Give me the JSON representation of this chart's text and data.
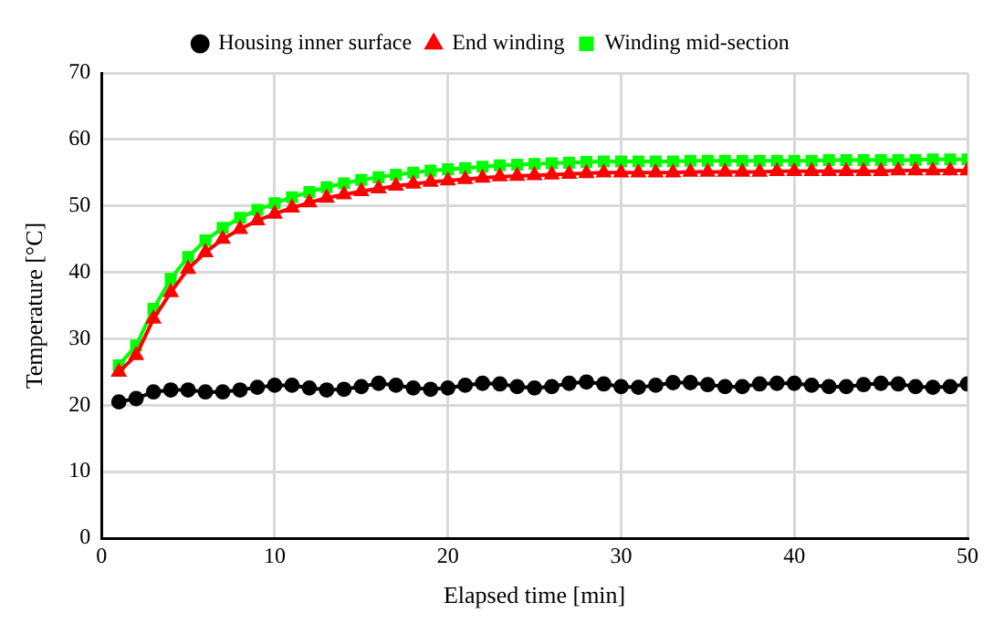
{
  "chart_data": {
    "type": "line",
    "xlabel": "Elapsed time [min]",
    "ylabel": "Temperature [°C]",
    "x": [
      1,
      2,
      3,
      4,
      5,
      6,
      7,
      8,
      9,
      10,
      11,
      12,
      13,
      14,
      15,
      16,
      17,
      18,
      19,
      20,
      21,
      22,
      23,
      24,
      25,
      26,
      27,
      28,
      29,
      30,
      31,
      32,
      33,
      34,
      35,
      36,
      37,
      38,
      39,
      40,
      41,
      42,
      43,
      44,
      45,
      46,
      47,
      48,
      49,
      50
    ],
    "series": [
      {
        "name": "Housing inner surface",
        "color": "#000000",
        "marker": "circle",
        "values": [
          20.5,
          21,
          22,
          22.3,
          22.3,
          22,
          22,
          22.3,
          22.7,
          23,
          23,
          22.6,
          22.3,
          22.4,
          22.8,
          23.3,
          23,
          22.6,
          22.4,
          22.6,
          23,
          23.3,
          23.2,
          22.8,
          22.6,
          22.8,
          23.3,
          23.5,
          23.2,
          22.8,
          22.7,
          23,
          23.4,
          23.4,
          23.1,
          22.8,
          22.8,
          23.2,
          23.3,
          23.3,
          23,
          22.8,
          22.8,
          23.1,
          23.3,
          23.2,
          22.8,
          22.7,
          22.8,
          23.2
        ]
      },
      {
        "name": "End winding",
        "color": "#ff0000",
        "marker": "triangle",
        "values": [
          25,
          27.5,
          33,
          37,
          40.5,
          43,
          45,
          46.5,
          47.8,
          48.8,
          49.7,
          50.5,
          51.2,
          51.7,
          52.2,
          52.6,
          53,
          53.3,
          53.6,
          53.8,
          54,
          54.2,
          54.4,
          54.5,
          54.6,
          54.7,
          54.8,
          54.9,
          55,
          55,
          55,
          55,
          55,
          55.1,
          55.1,
          55.1,
          55.1,
          55.1,
          55.2,
          55.2,
          55.2,
          55.2,
          55.2,
          55.2,
          55.2,
          55.3,
          55.3,
          55.3,
          55.3,
          55.3
        ]
      },
      {
        "name": "Winding mid-section",
        "color": "#00ff00",
        "marker": "square",
        "values": [
          26,
          29,
          34.5,
          39,
          42.3,
          44.8,
          46.7,
          48.2,
          49.4,
          50.4,
          51.3,
          52.1,
          52.8,
          53.4,
          53.9,
          54.3,
          54.7,
          55,
          55.3,
          55.5,
          55.7,
          55.9,
          56.1,
          56.2,
          56.3,
          56.4,
          56.5,
          56.6,
          56.7,
          56.7,
          56.7,
          56.7,
          56.7,
          56.8,
          56.8,
          56.8,
          56.8,
          56.8,
          56.8,
          56.8,
          56.8,
          56.9,
          56.9,
          56.9,
          56.9,
          56.9,
          56.9,
          57,
          57,
          57
        ]
      }
    ],
    "xlim": [
      0,
      50
    ],
    "xticks": [
      0,
      10,
      20,
      30,
      40,
      50
    ],
    "ylim": [
      0,
      70
    ],
    "yticks": [
      0,
      10,
      20,
      30,
      40,
      50,
      60,
      70
    ],
    "grid": true,
    "legend": "top",
    "line_style": "solid"
  }
}
